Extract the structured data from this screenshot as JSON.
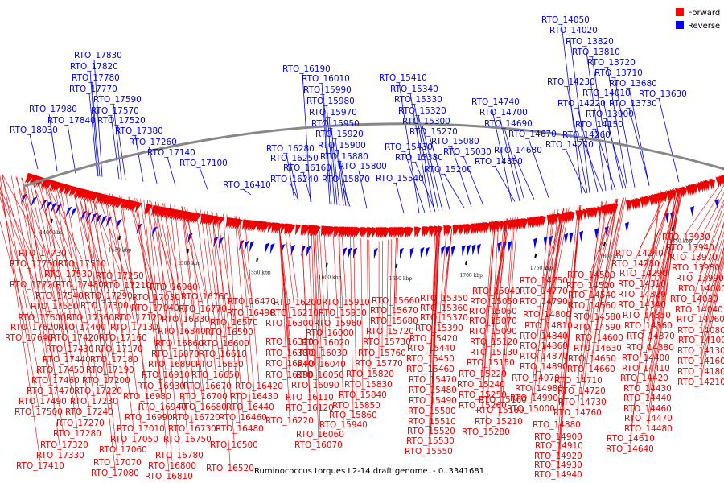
{
  "caption": "Ruminococcus torques L2-14 draft genome. - 0..3341681",
  "legend": [
    {
      "label": "Forward",
      "color": "#ff0000"
    },
    {
      "label": "Reverse",
      "color": "#0000ff"
    }
  ],
  "colors": {
    "forward": "#ee0000",
    "reverse": "#0000ee",
    "backbone": "#888888"
  },
  "scale_labels": [
    "1900 kbp",
    "1850 kbp",
    "1800 kbp",
    "1750 kbp",
    "1700 kbp",
    "1650 kbp",
    "1600 kbp",
    "1550 kbp",
    "1500 kbp",
    "1450 kbp",
    "1400 kbp"
  ],
  "reverse_labels": [
    "RTO_17830",
    "RTO_17820",
    "RTO_17780",
    "RTO_17770",
    "RTO_17590",
    "RTO_17570",
    "RTO_17980",
    "RTO_17840",
    "RTO_17520",
    "RTO_18030",
    "RTO_17380",
    "RTO_17260",
    "RTO_17140",
    "RTO_17100",
    "RTO_16190",
    "RTO_16010",
    "RTO_15990",
    "RTO_15980",
    "RTO_15970",
    "RTO_15950",
    "RTO_15920",
    "RTO_15900",
    "RTO_16280",
    "RTO_15880",
    "RTO_16250",
    "RTO_16160",
    "RTO_15800",
    "RTO_16240",
    "RTO_15870",
    "RTO_16410",
    "RTO_15410",
    "RTO_15340",
    "RTO_15330",
    "RTO_15320",
    "RTO_15300",
    "RTO_15270",
    "RTO_15430",
    "RTO_15080",
    "RTO_15380",
    "RTO_15030",
    "RTO_15200",
    "RTO_15540",
    "RTO_14740",
    "RTO_14700",
    "RTO_14690",
    "RTO_14670",
    "RTO_14680",
    "RTO_14850",
    "RTO_14050",
    "RTO_14020",
    "RTO_13820",
    "RTO_13810",
    "RTO_13720",
    "RTO_13710",
    "RTO_14230",
    "RTO_13680",
    "RTO_14010",
    "RTO_13630",
    "RTO_14220",
    "RTO_13730",
    "RTO_13900",
    "RTO_14150",
    "RTO_14260",
    "RTO_14270"
  ],
  "forward_labels": [
    "RTO_17730",
    "RTO_17750",
    "RTO_17510",
    "RTO_17530",
    "RTO_17250",
    "RTO_17720",
    "RTO_17480",
    "RTO_17210",
    "RTO_16960",
    "RTO_17540",
    "RTO_17290",
    "RTO_17030",
    "RTO_16760",
    "RTO_16470",
    "RTO_16200",
    "RTO_15910",
    "RTO_15660",
    "RTO_15350",
    "RTO_15040",
    "RTO_14750",
    "RTO_14500",
    "RTO_14240",
    "RTO_17550",
    "RTO_17300",
    "RTO_17040",
    "RTO_16770",
    "RTO_16490",
    "RTO_16210",
    "RTO_15930",
    "RTO_15670",
    "RTO_15360",
    "RTO_15050",
    "RTO_14770",
    "RTO_14520",
    "RTO_14280",
    "RTO_17600",
    "RTO_17360",
    "RTO_17120",
    "RTO_16830",
    "RTO_16570",
    "RTO_16300",
    "RTO_15960",
    "RTO_15680",
    "RTO_15370",
    "RTO_15060",
    "RTO_14790",
    "RTO_14540",
    "RTO_14290",
    "RTO_17620",
    "RTO_17400",
    "RTO_17130",
    "RTO_16840",
    "RTO_16590",
    "RTO_16000",
    "RTO_15720",
    "RTO_15390",
    "RTO_15070",
    "RTO_14800",
    "RTO_14560",
    "RTO_14310",
    "RTO_17640",
    "RTO_17420",
    "RTO_17160",
    "RTO_16860",
    "RTO_16600",
    "RTO_16310",
    "RTO_16020",
    "RTO_15730",
    "RTO_15420",
    "RTO_15090",
    "RTO_14810",
    "RTO_14580",
    "RTO_14320",
    "RTO_17430",
    "RTO_17170",
    "RTO_16870",
    "RTO_16610",
    "RTO_16330",
    "RTO_16030",
    "RTO_15760",
    "RTO_15440",
    "RTO_15120",
    "RTO_14840",
    "RTO_14590",
    "RTO_14340",
    "RTO_17440",
    "RTO_17180",
    "RTO_16890",
    "RTO_16630",
    "RTO_16340",
    "RTO_16040",
    "RTO_15770",
    "RTO_15450",
    "RTO_15130",
    "RTO_14860",
    "RTO_14600",
    "RTO_14350",
    "RTO_17450",
    "RTO_17190",
    "RTO_16910",
    "RTO_16650",
    "RTO_16390",
    "RTO_16050",
    "RTO_15820",
    "RTO_15460",
    "RTO_15150",
    "RTO_14870",
    "RTO_14630",
    "RTO_14360",
    "RTO_17460",
    "RTO_17200",
    "RTO_16930",
    "RTO_16670",
    "RTO_16420",
    "RTO_16090",
    "RTO_15830",
    "RTO_15470",
    "RTO_15220",
    "RTO_14890",
    "RTO_14650",
    "RTO_14370",
    "RTO_17470",
    "RTO_17220",
    "RTO_16980",
    "RTO_16700",
    "RTO_16430",
    "RTO_16110",
    "RTO_15840",
    "RTO_15480",
    "RTO_15240",
    "RTO_14970",
    "RTO_14660",
    "RTO_14380",
    "RTO_17490",
    "RTO_17230",
    "RTO_16940",
    "RTO_16680",
    "RTO_16440",
    "RTO_16120",
    "RTO_15850",
    "RTO_15490",
    "RTO_15250",
    "RTO_14980",
    "RTO_14710",
    "RTO_14400",
    "RTO_17500",
    "RTO_17240",
    "RTO_16990",
    "RTO_16720",
    "RTO_16460",
    "RTO_16220",
    "RTO_15860",
    "RTO_15500",
    "RTO_15260",
    "RTO_14990",
    "RTO_14720",
    "RTO_14410",
    "RTO_17270",
    "RTO_17010",
    "RTO_16730",
    "RTO_16480",
    "RTO_16060",
    "RTO_15940",
    "RTO_15510",
    "RTO_15160",
    "RTO_15000",
    "RTO_14730",
    "RTO_14420",
    "RTO_17280",
    "RTO_17050",
    "RTO_16750",
    "RTO_16500",
    "RTO_16070",
    "RTO_15520",
    "RTO_15180",
    "RTO_14880",
    "RTO_14760",
    "RTO_14430",
    "RTO_17320",
    "RTO_17060",
    "RTO_16780",
    "RTO_16520",
    "RTO_15530",
    "RTO_15210",
    "RTO_14900",
    "RTO_14440",
    "RTO_17330",
    "RTO_17070",
    "RTO_16800",
    "RTO_15550",
    "RTO_15280",
    "RTO_14910",
    "RTO_14460",
    "RTO_17410",
    "RTO_17080",
    "RTO_16810",
    "RTO_14920",
    "RTO_14470",
    "RTO_14930",
    "RTO_14480",
    "RTO_14610",
    "RTO_14940",
    "RTO_14640",
    "RTO_13930",
    "RTO_13940",
    "RTO_13970",
    "RTO_13980",
    "RTO_13990",
    "RTO_14000",
    "RTO_14030",
    "RTO_14040",
    "RTO_14060",
    "RTO_14080",
    "RTO_14100",
    "RTO_14130",
    "RTO_14160",
    "RTO_14180",
    "RTO_14210"
  ]
}
